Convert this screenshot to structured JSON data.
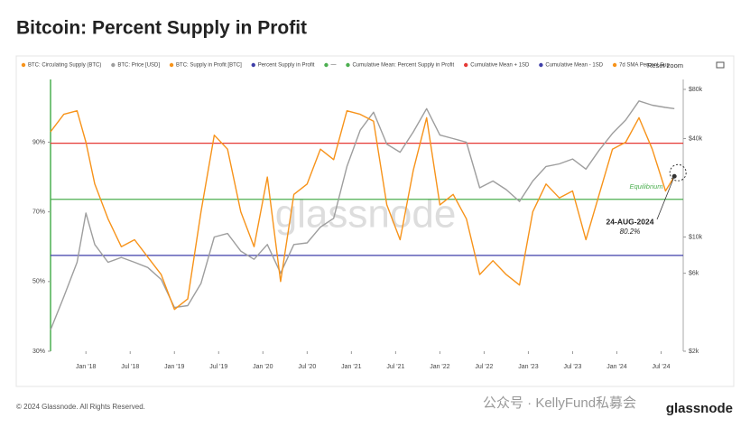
{
  "chart_data": {
    "type": "line",
    "title": "Bitcoin: Percent Supply in Profit",
    "legend": [
      {
        "name": "BTC: Circulating Supply (BTC)",
        "color": "#f7931a"
      },
      {
        "name": "BTC: Price [USD]",
        "color": "#9e9e9e"
      },
      {
        "name": "BTC: Supply in Profit [BTC]",
        "color": "#f7931a"
      },
      {
        "name": "Percent Supply in Profit",
        "color": "#3f3fa8"
      },
      {
        "name": "—",
        "color": "#4caf50"
      },
      {
        "name": "Cumulative Mean: Percent Supply in Profit",
        "color": "#4caf50"
      },
      {
        "name": "Cumulative Mean + 1SD",
        "color": "#e53935"
      },
      {
        "name": "Cumulative Mean - 1SD",
        "color": "#3f3fa8"
      },
      {
        "name": "7d SMA Percent Sup",
        "color": "#f7931a"
      }
    ],
    "reset_button": "Reset zoom",
    "x": [
      2017.6,
      2017.75,
      2017.9,
      2018.0,
      2018.1,
      2018.25,
      2018.4,
      2018.55,
      2018.7,
      2018.85,
      2019.0,
      2019.15,
      2019.3,
      2019.45,
      2019.6,
      2019.75,
      2019.9,
      2020.05,
      2020.2,
      2020.35,
      2020.5,
      2020.65,
      2020.8,
      2020.95,
      2021.1,
      2021.25,
      2021.4,
      2021.55,
      2021.7,
      2021.85,
      2022.0,
      2022.15,
      2022.3,
      2022.45,
      2022.6,
      2022.75,
      2022.9,
      2023.05,
      2023.2,
      2023.35,
      2023.5,
      2023.65,
      2023.8,
      2023.95,
      2024.1,
      2024.25,
      2024.4,
      2024.55,
      2024.65
    ],
    "series": [
      {
        "color": "#9e9e9e",
        "axis": "y2",
        "values": [
          2700,
          4300,
          7000,
          14000,
          9000,
          7000,
          7500,
          7000,
          6500,
          5500,
          3700,
          3800,
          5200,
          10000,
          10500,
          8200,
          7300,
          9000,
          6000,
          9000,
          9200,
          11500,
          13000,
          27000,
          45000,
          58000,
          37000,
          33000,
          44000,
          61000,
          42000,
          40000,
          38000,
          20000,
          22000,
          19500,
          16500,
          22000,
          27000,
          28000,
          30000,
          26000,
          34000,
          43000,
          52000,
          68000,
          64000,
          62000,
          61000
        ]
      },
      {
        "color": "#f7931a",
        "values": [
          93,
          98,
          99,
          90,
          78,
          68,
          60,
          62,
          57,
          52,
          42,
          45,
          70,
          92,
          88,
          70,
          60,
          80,
          50,
          75,
          78,
          88,
          85,
          99,
          98,
          96,
          72,
          62,
          82,
          97,
          72,
          75,
          68,
          52,
          56,
          52,
          49,
          70,
          78,
          74,
          76,
          62,
          75,
          88,
          90,
          97,
          88,
          76,
          80.2
        ]
      }
    ],
    "hlines": [
      {
        "value": 89.7,
        "color": "#e53935"
      },
      {
        "value": 73.6,
        "color": "#4caf50"
      },
      {
        "value": 57.5,
        "color": "#3f3fa8"
      }
    ],
    "xlim": [
      2017.6,
      2024.75
    ],
    "xticks": [
      {
        "value": 2018.0,
        "label": "Jan '18"
      },
      {
        "value": 2018.5,
        "label": "Jul '18"
      },
      {
        "value": 2019.0,
        "label": "Jan '19"
      },
      {
        "value": 2019.5,
        "label": "Jul '19"
      },
      {
        "value": 2020.0,
        "label": "Jan '20"
      },
      {
        "value": 2020.5,
        "label": "Jul '20"
      },
      {
        "value": 2021.0,
        "label": "Jan '21"
      },
      {
        "value": 2021.5,
        "label": "Jul '21"
      },
      {
        "value": 2022.0,
        "label": "Jan '22"
      },
      {
        "value": 2022.5,
        "label": "Jul '22"
      },
      {
        "value": 2023.0,
        "label": "Jan '23"
      },
      {
        "value": 2023.5,
        "label": "Jul '23"
      },
      {
        "value": 2024.0,
        "label": "Jan '24"
      },
      {
        "value": 2024.5,
        "label": "Jul '24"
      }
    ],
    "ylim": [
      30,
      108
    ],
    "yticks": [
      {
        "value": 30,
        "label": "30%"
      },
      {
        "value": 50,
        "label": "50%"
      },
      {
        "value": 70,
        "label": "70%"
      },
      {
        "value": 90,
        "label": "90%"
      }
    ],
    "y2lim": [
      2000,
      92000
    ],
    "y2log": true,
    "y2ticks": [
      {
        "value": 2000,
        "label": "$2k"
      },
      {
        "value": 6000,
        "label": "$6k"
      },
      {
        "value": 10000,
        "label": "$10k"
      },
      {
        "value": 40000,
        "label": "$40k"
      },
      {
        "value": 80000,
        "label": "$80k"
      }
    ],
    "annotations": {
      "date": "24-AUG-2024",
      "value": "80.2%",
      "equilibrium": "Equilibrium"
    },
    "watermark": "glassnode",
    "footer": "© 2024 Glassnode. All Rights Reserved.",
    "wechat": "公众号 · KellyFund私募会",
    "logo": "glassnode"
  }
}
